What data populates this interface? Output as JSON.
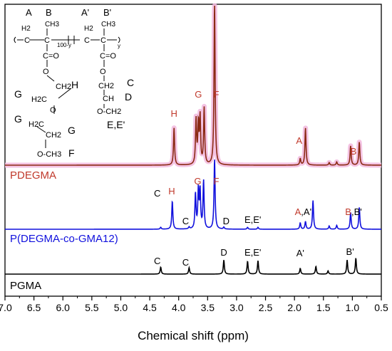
{
  "chart_data": {
    "type": "line",
    "xlabel": "Chemical shift (ppm)",
    "ylabel": "",
    "xlim": [
      7.0,
      0.5
    ],
    "x_ticks": [
      "7.0",
      "6.5",
      "6.0",
      "5.5",
      "5.0",
      "4.5",
      "4.0",
      "3.5",
      "3.0",
      "2.5",
      "2.0",
      "1.5",
      "1.0",
      "0.5"
    ],
    "x_tick_values": [
      7.0,
      6.5,
      6.0,
      5.5,
      5.0,
      4.5,
      4.0,
      3.5,
      3.0,
      2.5,
      2.0,
      1.5,
      1.0,
      0.5
    ],
    "colors": {
      "PDEGMA": "#8B2A14",
      "PDEGMA_fill": "#F2B8DE",
      "P(DEGMA-co-GMA12)": "#1010DD",
      "PGMA": "#000000",
      "label_red": "#C0392B"
    },
    "series": [
      {
        "name": "PDEGMA",
        "peaks": [
          {
            "x": 4.08,
            "h": 0.58
          },
          {
            "x": 3.7,
            "h": 0.7
          },
          {
            "x": 3.66,
            "h": 0.62
          },
          {
            "x": 3.63,
            "h": 0.73
          },
          {
            "x": 3.56,
            "h": 0.88
          },
          {
            "x": 3.38,
            "h": 2.55
          },
          {
            "x": 1.9,
            "h": 0.1
          },
          {
            "x": 1.81,
            "h": 0.58
          },
          {
            "x": 1.4,
            "h": 0.04
          },
          {
            "x": 1.27,
            "h": 0.05
          },
          {
            "x": 1.03,
            "h": 0.3
          },
          {
            "x": 0.88,
            "h": 0.36
          }
        ],
        "labels": [
          {
            "text": "H",
            "x": 4.08
          },
          {
            "text": "G",
            "x": 3.66
          },
          {
            "text": "F",
            "x": 3.35
          },
          {
            "text": "A",
            "x": 1.92
          },
          {
            "text": "B",
            "x": 0.98
          }
        ]
      },
      {
        "name": "P(DEGMA-co-GMA12)",
        "peaks": [
          {
            "x": 4.31,
            "h": 0.03
          },
          {
            "x": 4.11,
            "h": 0.44
          },
          {
            "x": 3.82,
            "h": 0.03
          },
          {
            "x": 3.71,
            "h": 0.55
          },
          {
            "x": 3.66,
            "h": 0.6
          },
          {
            "x": 3.63,
            "h": 0.58
          },
          {
            "x": 3.57,
            "h": 0.75
          },
          {
            "x": 3.38,
            "h": 1.1
          },
          {
            "x": 3.22,
            "h": 0.03
          },
          {
            "x": 2.81,
            "h": 0.03
          },
          {
            "x": 2.63,
            "h": 0.03
          },
          {
            "x": 1.9,
            "h": 0.1
          },
          {
            "x": 1.81,
            "h": 0.12
          },
          {
            "x": 1.68,
            "h": 0.45
          },
          {
            "x": 1.4,
            "h": 0.05
          },
          {
            "x": 1.27,
            "h": 0.06
          },
          {
            "x": 1.03,
            "h": 0.26
          },
          {
            "x": 0.88,
            "h": 0.34
          }
        ],
        "labels": [
          {
            "text": "C",
            "x": 4.37
          },
          {
            "text": "H",
            "x": 4.12
          },
          {
            "text": "C",
            "x": 3.88
          },
          {
            "text": "G",
            "x": 3.67
          },
          {
            "text": "F",
            "x": 3.35
          },
          {
            "text": "D",
            "x": 3.18
          },
          {
            "text": "E,E'",
            "x": 2.72
          },
          {
            "text": "A,A'",
            "x": 1.85
          },
          {
            "text": "B,B'",
            "x": 0.98
          }
        ]
      },
      {
        "name": "PGMA",
        "peaks": [
          {
            "x": 4.31,
            "h": 0.11
          },
          {
            "x": 3.82,
            "h": 0.1
          },
          {
            "x": 3.22,
            "h": 0.22
          },
          {
            "x": 2.81,
            "h": 0.2
          },
          {
            "x": 2.63,
            "h": 0.21
          },
          {
            "x": 1.9,
            "h": 0.09
          },
          {
            "x": 1.63,
            "h": 0.12
          },
          {
            "x": 1.42,
            "h": 0.05
          },
          {
            "x": 1.09,
            "h": 0.22
          },
          {
            "x": 0.94,
            "h": 0.25
          }
        ],
        "labels": [
          {
            "text": "C",
            "x": 4.37
          },
          {
            "text": "C",
            "x": 3.88
          },
          {
            "text": "D",
            "x": 3.22
          },
          {
            "text": "E,E'",
            "x": 2.72
          },
          {
            "text": "A'",
            "x": 1.9
          },
          {
            "text": "B'",
            "x": 1.04
          }
        ]
      }
    ],
    "structure_labels": {
      "A": "A",
      "B": "B",
      "A_prime": "A'",
      "B_prime": "B'",
      "C": "C",
      "D": "D",
      "EE": "E,E'",
      "F": "F",
      "G": "G",
      "H": "H",
      "H2": "H2",
      "CH3": "CH3",
      "CEqO": "C=O",
      "O": "O",
      "sub_100y": "100-y",
      "sub_y": "y",
      "CH2": "CH2",
      "CH": "CH",
      "H2C": "H2C",
      "OCH2": "O-CH2",
      "OCH3": "O-CH3"
    }
  }
}
